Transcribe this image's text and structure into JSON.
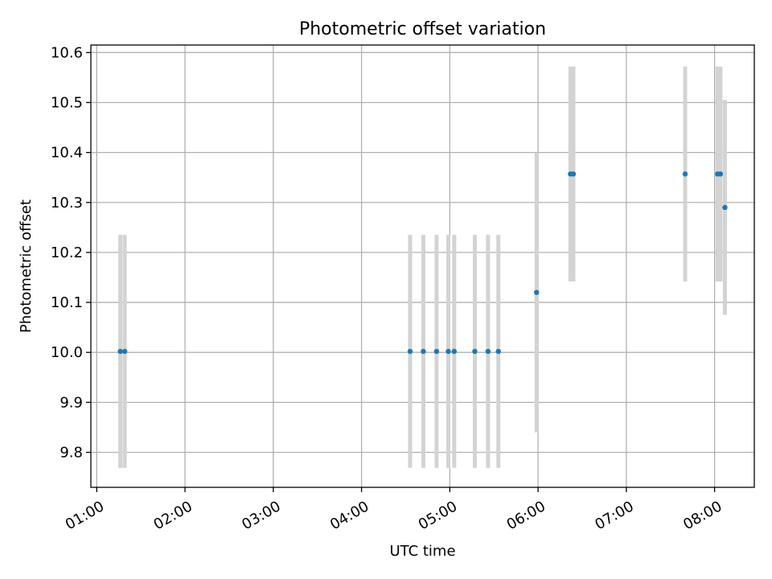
{
  "chart_data": {
    "type": "scatter",
    "title": "Photometric offset variation",
    "xlabel": "UTC time",
    "ylabel": "Photometric offset",
    "xlim": [
      "00:56",
      "08:27"
    ],
    "ylim": [
      9.73,
      10.615
    ],
    "grid": true,
    "x_ticks": [
      "01:00",
      "02:00",
      "03:00",
      "04:00",
      "05:00",
      "06:00",
      "07:00",
      "08:00"
    ],
    "y_ticks": [
      "9.8",
      "9.9",
      "10.0",
      "10.1",
      "10.2",
      "10.3",
      "10.4",
      "10.5",
      "10.6"
    ],
    "point_color": "#1f77b4",
    "errorbar_color": "#d3d3d3",
    "points": [
      {
        "x": "01:16",
        "y": 10.002,
        "err": 0.233
      },
      {
        "x": "01:19",
        "y": 10.002,
        "err": 0.233
      },
      {
        "x": "04:33",
        "y": 10.002,
        "err": 0.233
      },
      {
        "x": "04:42",
        "y": 10.002,
        "err": 0.233
      },
      {
        "x": "04:51",
        "y": 10.002,
        "err": 0.233
      },
      {
        "x": "04:59",
        "y": 10.002,
        "err": 0.233
      },
      {
        "x": "05:03",
        "y": 10.002,
        "err": 0.233
      },
      {
        "x": "05:17",
        "y": 10.002,
        "err": 0.233
      },
      {
        "x": "05:26",
        "y": 10.002,
        "err": 0.233
      },
      {
        "x": "05:33",
        "y": 10.002,
        "err": 0.233
      },
      {
        "x": "05:59",
        "y": 10.12,
        "err": 0.28
      },
      {
        "x": "06:22",
        "y": 10.357,
        "err": 0.215
      },
      {
        "x": "06:24",
        "y": 10.357,
        "err": 0.215
      },
      {
        "x": "07:40",
        "y": 10.357,
        "err": 0.215
      },
      {
        "x": "08:02",
        "y": 10.357,
        "err": 0.215
      },
      {
        "x": "08:04",
        "y": 10.357,
        "err": 0.215
      },
      {
        "x": "08:07",
        "y": 10.29,
        "err": 0.215
      }
    ]
  }
}
